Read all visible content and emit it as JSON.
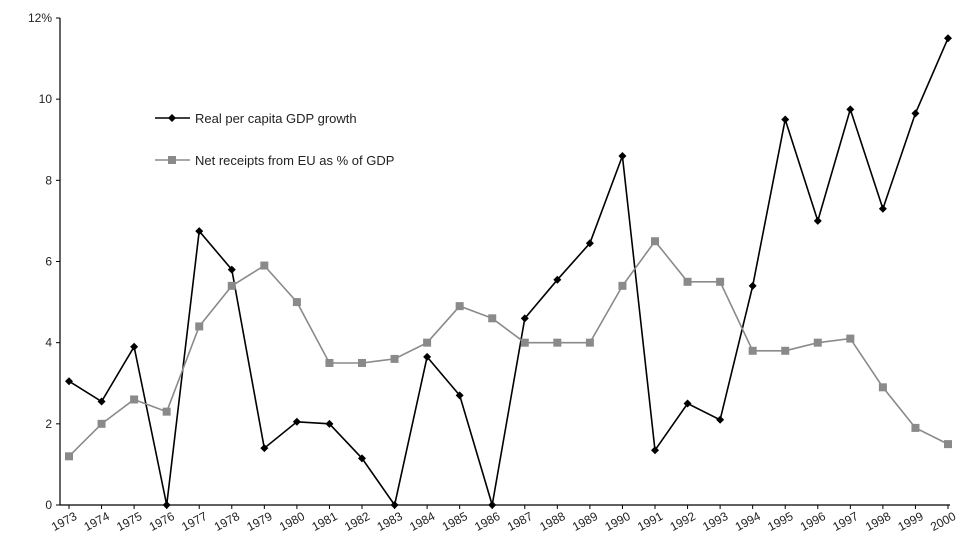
{
  "chart_data": {
    "type": "line",
    "title": "",
    "xlabel": "",
    "ylabel": "",
    "x": [
      "1973",
      "1974",
      "1975",
      "1976",
      "1977",
      "1978",
      "1979",
      "1980",
      "1981",
      "1982",
      "1983",
      "1984",
      "1985",
      "1986",
      "1987",
      "1988",
      "1989",
      "1990",
      "1991",
      "1992",
      "1993",
      "1994",
      "1995",
      "1996",
      "1997",
      "1998",
      "1999",
      "2000"
    ],
    "ylim": [
      0,
      12
    ],
    "y_ticks": [
      "0",
      "2",
      "4",
      "6",
      "8",
      "10",
      "12%"
    ],
    "grid": false,
    "legend_position": "top-left",
    "series": [
      {
        "name": "Real per capita GDP growth",
        "color": "#000000",
        "marker": "diamond",
        "values": [
          3.05,
          2.55,
          3.9,
          -0.05,
          6.75,
          5.8,
          1.4,
          2.05,
          2.0,
          1.15,
          -0.05,
          3.65,
          2.7,
          -0.05,
          4.6,
          5.55,
          6.45,
          8.6,
          1.35,
          2.5,
          2.1,
          5.4,
          9.5,
          7.0,
          9.75,
          7.3,
          9.65,
          11.5
        ]
      },
      {
        "name": "Net receipts from EU as % of GDP",
        "color": "#8a8a8a",
        "marker": "square",
        "values": [
          1.2,
          2.0,
          2.6,
          2.3,
          4.4,
          5.4,
          5.9,
          5.0,
          3.5,
          3.5,
          3.6,
          4.0,
          4.9,
          4.6,
          4.0,
          4.0,
          4.0,
          5.4,
          6.5,
          5.5,
          5.5,
          3.8,
          3.8,
          4.0,
          4.1,
          2.9,
          1.9,
          1.5
        ]
      }
    ]
  }
}
